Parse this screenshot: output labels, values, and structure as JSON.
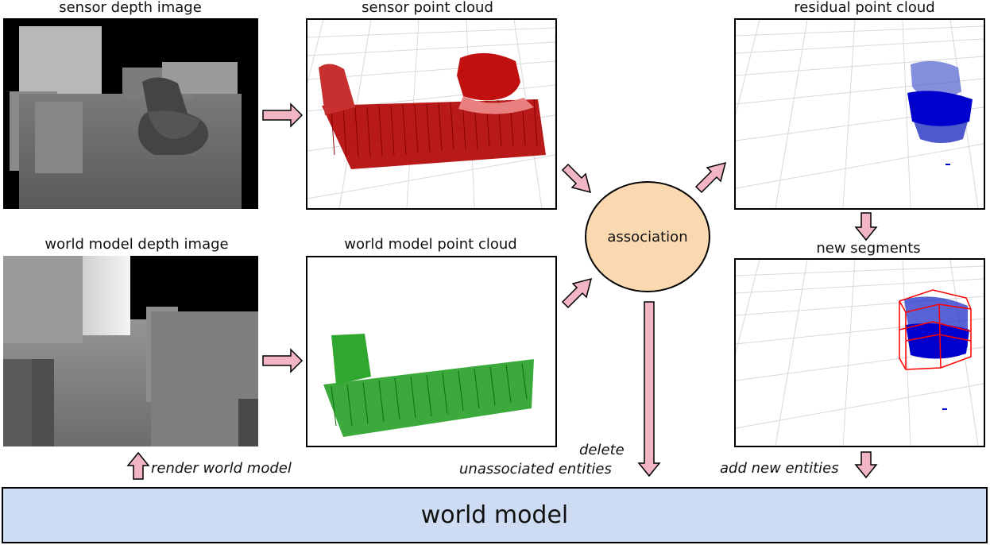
{
  "titles": {
    "sensor_depth": "sensor depth image",
    "sensor_cloud": "sensor point cloud",
    "residual_cloud": "residual point cloud",
    "world_depth": "world model depth image",
    "world_cloud": "world model point cloud",
    "new_segments": "new segments"
  },
  "association": "association",
  "labels": {
    "render": "render world model",
    "delete_line1": "delete",
    "delete_line2": "unassociated entities",
    "add": "add new entities"
  },
  "world_model": "world model",
  "colors": {
    "arrow_fill": "#f2b5c4",
    "association_fill": "#fbd9b0",
    "world_model_fill": "#cddcf3",
    "sensor_cloud_points": "#c00000",
    "world_cloud_points": "#1a9a1a",
    "residual_points": "#0000cc",
    "segment_box": "#ff0000"
  }
}
